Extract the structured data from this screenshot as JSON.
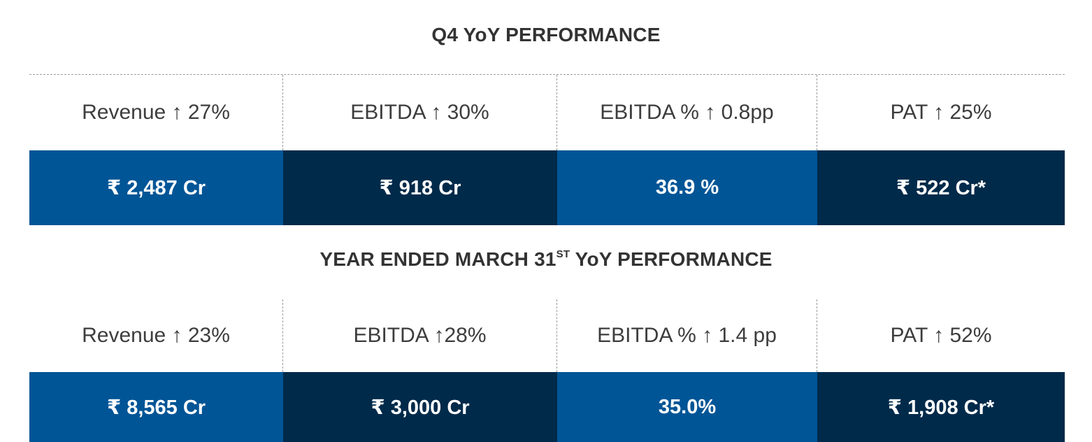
{
  "sections": [
    {
      "title": "Q4 YoY PERFORMANCE",
      "metrics": [
        {
          "label": "Revenue ↑ 27%",
          "value": "₹ 2,487 Cr"
        },
        {
          "label": "EBITDA ↑ 30%",
          "value": "₹ 918 Cr"
        },
        {
          "label": "EBITDA % ↑ 0.8pp",
          "value": "36.9 %"
        },
        {
          "label": "PAT ↑ 25%",
          "value": "₹ 522 Cr*"
        }
      ]
    },
    {
      "title_main": "YEAR ENDED MARCH 31",
      "title_sup": "ST",
      "title_tail": " YoY PERFORMANCE",
      "metrics": [
        {
          "label": "Revenue ↑ 23%",
          "value": "₹ 8,565 Cr"
        },
        {
          "label": "EBITDA ↑28%",
          "value": "₹ 3,000 Cr"
        },
        {
          "label": "EBITDA % ↑ 1.4 pp",
          "value": "35.0%"
        },
        {
          "label": "PAT ↑ 52%",
          "value": "₹ 1,908 Cr*"
        }
      ]
    }
  ],
  "colors": {
    "blue": "#005596",
    "navy": "#002a4a",
    "divider": "#9a9a9a"
  }
}
